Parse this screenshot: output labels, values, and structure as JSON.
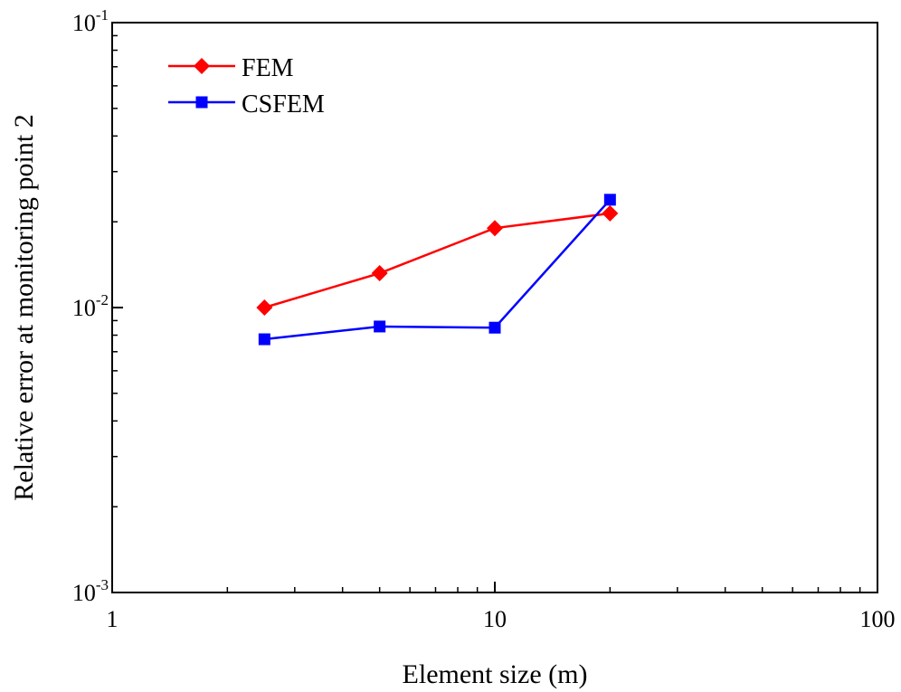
{
  "chart_data": {
    "type": "line",
    "xlabel": "Element size (m)",
    "ylabel": "Relative error at monitoring point 2",
    "xscale": "log",
    "yscale": "log",
    "xlim": [
      1,
      100
    ],
    "ylim": [
      0.001,
      0.1
    ],
    "x_ticks": [
      {
        "value": 1,
        "label": "1"
      },
      {
        "value": 10,
        "label": "10"
      },
      {
        "value": 100,
        "label": "100"
      }
    ],
    "y_ticks": [
      {
        "value": 0.001,
        "base": "10",
        "exp": "-3"
      },
      {
        "value": 0.01,
        "base": "10",
        "exp": "-2"
      },
      {
        "value": 0.1,
        "base": "10",
        "exp": "-1"
      }
    ],
    "grid": false,
    "legend": "top-left",
    "series": [
      {
        "name": "FEM",
        "color": "#ff0000",
        "marker": "diamond",
        "x": [
          2.5,
          5,
          10,
          20
        ],
        "y": [
          0.01,
          0.0132,
          0.019,
          0.0214
        ]
      },
      {
        "name": "CSFEM",
        "color": "#0000ff",
        "marker": "square",
        "x": [
          2.5,
          5,
          10,
          20
        ],
        "y": [
          0.00774,
          0.00858,
          0.0085,
          0.0239
        ]
      }
    ]
  }
}
